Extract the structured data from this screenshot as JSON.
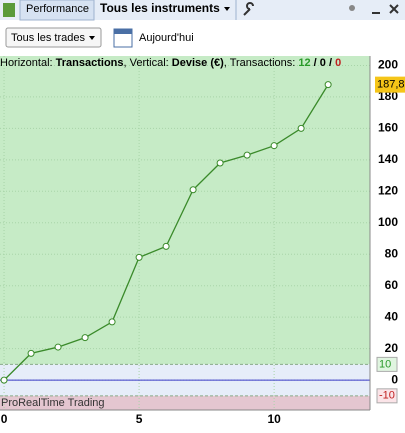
{
  "toolbar": {
    "tab": "Performance",
    "instruments": "Tous les instruments",
    "filter": "Tous les trades",
    "date": "Aujourd'hui"
  },
  "chart_data": {
    "type": "line",
    "info": [
      "Horizontal: ",
      "Transactions",
      ", Vertical: ",
      "Devise (€)",
      ", Transactions: ",
      "12",
      " / ",
      "0",
      " / ",
      "0"
    ],
    "x": [
      0,
      1,
      2,
      3,
      4,
      5,
      6,
      7,
      8,
      9,
      10,
      11,
      12
    ],
    "values": [
      0,
      17,
      21,
      27,
      37,
      78,
      85,
      121,
      138,
      143,
      149,
      160,
      187.8
    ],
    "last_label": {
      "value": 187.8,
      "label": "187,8"
    },
    "color": "#3a8a2a",
    "xlim": [
      -0.15,
      13.55
    ],
    "xticks": [
      0,
      5,
      10
    ],
    "ylim": [
      -19,
      206
    ],
    "yticks": [
      0,
      20,
      40,
      60,
      80,
      100,
      120,
      140,
      160,
      180,
      200
    ],
    "thresholds": [
      10,
      -10
    ],
    "zone_colors": [
      "#c6ebc6",
      "#e6edf9",
      "#e4c6d0"
    ],
    "zero_line_color": "#3a3ac8",
    "grid": true,
    "watermark": "ProRealTime Trading"
  }
}
